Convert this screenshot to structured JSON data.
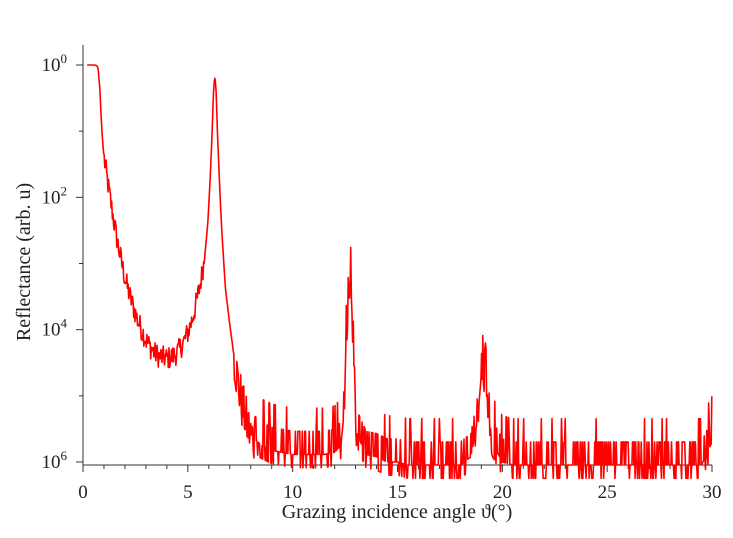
{
  "chart_data": {
    "type": "line",
    "xlabel": "Grazing incidence angle ϑ(°)",
    "ylabel": "Reflectance (arb. u)",
    "x_ticks": [
      "0",
      "5",
      "10",
      "15",
      "20",
      "25",
      "30"
    ],
    "xlim": [
      0,
      30
    ],
    "y_ticks": [
      {
        "base": "10",
        "exp": "0"
      },
      {
        "base": "10",
        "exp": "2"
      },
      {
        "base": "10",
        "exp": "4"
      },
      {
        "base": "10",
        "exp": "6"
      }
    ],
    "ylim_log10": [
      0,
      -6
    ],
    "y_scale": "log (axis inverted: exponent increases downward)",
    "grid": false,
    "series_color": "#ff0000",
    "series": [
      {
        "x": [
          0.2,
          0.4,
          0.55,
          0.65,
          0.72,
          0.8,
          0.9,
          1.0,
          1.2,
          1.4,
          1.6,
          1.8,
          2.0,
          2.2,
          2.4,
          2.6,
          2.8,
          3.0,
          3.2,
          3.4,
          3.6,
          3.8,
          4.0,
          4.2,
          4.4,
          4.6,
          4.8,
          5.0,
          5.2,
          5.4,
          5.6,
          5.8,
          5.95,
          6.05,
          6.15,
          6.2,
          6.25,
          6.3,
          6.35,
          6.4,
          6.5,
          6.6,
          6.7,
          6.8,
          7.0,
          7.2,
          7.4,
          7.6,
          7.8,
          8.0,
          8.5,
          9.0,
          9.5,
          10.0,
          10.5,
          11.0,
          11.5,
          12.0,
          12.3,
          12.5,
          12.6,
          12.7,
          12.8,
          12.9,
          13.0,
          13.5,
          14.0,
          14.5,
          15.0,
          15.5,
          16.0,
          16.5,
          17.0,
          17.5,
          18.0,
          18.5,
          18.8,
          19.0,
          19.1,
          19.2,
          19.3,
          19.5,
          20.0,
          20.5,
          21.0,
          21.5,
          22.0,
          22.5,
          23.0,
          23.5,
          24.0,
          24.5,
          25.0,
          25.5,
          26.0,
          26.5,
          27.0,
          27.5,
          28.0,
          28.5,
          29.0,
          29.5,
          30.0
        ],
        "y": [
          1.0,
          1.0,
          1.0,
          0.98,
          0.9,
          0.45,
          0.1,
          0.04,
          0.015,
          0.006,
          0.0025,
          0.0012,
          0.0006,
          0.00035,
          0.00022,
          0.00014,
          0.0001,
          7e-05,
          5.5e-05,
          4.5e-05,
          4e-05,
          3.8e-05,
          3.7e-05,
          3.8e-05,
          4.2e-05,
          5e-05,
          6.5e-05,
          9e-05,
          0.00014,
          0.00025,
          0.0005,
          0.0012,
          0.004,
          0.015,
          0.08,
          0.25,
          0.55,
          0.65,
          0.4,
          0.12,
          0.02,
          0.004,
          0.0012,
          0.0004,
          0.00012,
          4e-05,
          1.5e-05,
          7e-06,
          4e-06,
          2.5e-06,
          1.8e-06,
          1.5e-06,
          1.4e-06,
          1.3e-06,
          1.3e-06,
          1.3e-06,
          1.3e-06,
          1.4e-06,
          1.8e-06,
          8e-06,
          0.00015,
          0.0005,
          0.0003,
          5e-05,
          3e-06,
          1.3e-06,
          1.2e-06,
          1e-06,
          1e-06,
          9e-07,
          9e-07,
          9e-07,
          9e-07,
          9e-07,
          9e-07,
          1.2e-06,
          4e-06,
          2e-05,
          1.5e-05,
          3e-05,
          8e-06,
          2e-06,
          1e-06,
          9e-07,
          9e-07,
          9e-07,
          9e-07,
          9e-07,
          9e-07,
          9e-07,
          9e-07,
          9e-07,
          9e-07,
          9e-07,
          9e-07,
          9e-07,
          9e-07,
          9e-07,
          9e-07,
          9e-07,
          9e-07,
          9e-07,
          2e-06
        ]
      }
    ]
  }
}
